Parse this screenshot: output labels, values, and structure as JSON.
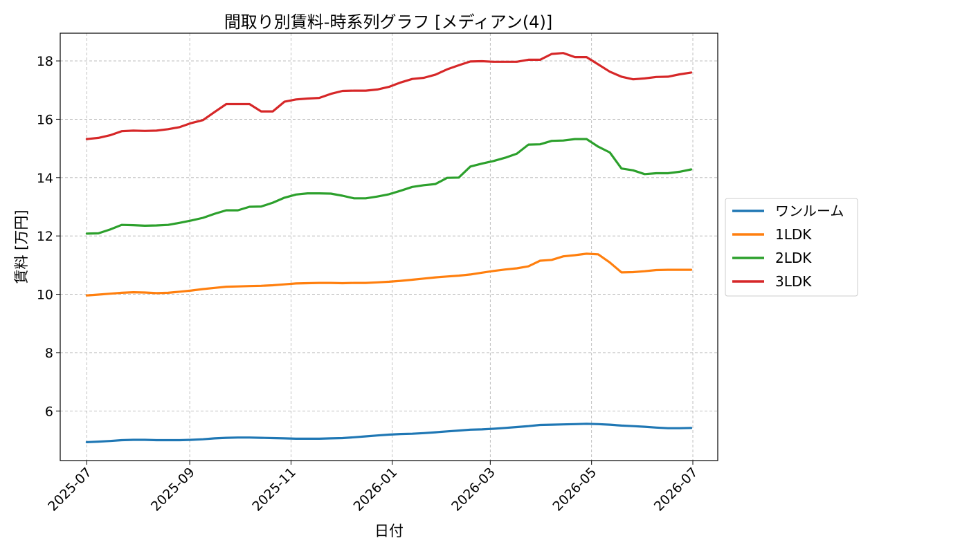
{
  "chart_data": {
    "type": "line",
    "title": "間取り別賃料-時系列グラフ [メディアン(4)]",
    "xlabel": "日付",
    "ylabel": "賃料 [万円]",
    "x_ticks": [
      "2025-07",
      "2025-09",
      "2025-11",
      "2026-01",
      "2026-03",
      "2026-05",
      "2026-07"
    ],
    "y_ticks": [
      6,
      8,
      10,
      12,
      14,
      16,
      18
    ],
    "xlim": [
      "2025-06-15",
      "2026-07-16"
    ],
    "ylim": [
      4.3,
      18.95
    ],
    "grid": true,
    "legend_position": "right",
    "x": [
      "2025-07-01",
      "2025-07-08",
      "2025-07-15",
      "2025-07-22",
      "2025-07-29",
      "2025-08-05",
      "2025-08-12",
      "2025-08-19",
      "2025-08-26",
      "2025-09-02",
      "2025-09-09",
      "2025-09-16",
      "2025-09-23",
      "2025-09-30",
      "2025-10-07",
      "2025-10-14",
      "2025-10-21",
      "2025-10-28",
      "2025-11-04",
      "2025-11-11",
      "2025-11-18",
      "2025-11-25",
      "2025-12-02",
      "2025-12-09",
      "2025-12-16",
      "2025-12-23",
      "2025-12-30",
      "2026-01-06",
      "2026-01-13",
      "2026-01-20",
      "2026-01-27",
      "2026-02-03",
      "2026-02-10",
      "2026-02-17",
      "2026-02-24",
      "2026-03-03",
      "2026-03-10",
      "2026-03-17",
      "2026-03-24",
      "2026-03-31",
      "2026-04-07",
      "2026-04-14",
      "2026-04-21",
      "2026-04-28",
      "2026-05-05",
      "2026-05-12",
      "2026-05-19",
      "2026-05-26",
      "2026-06-02",
      "2026-06-09",
      "2026-06-16",
      "2026-06-23",
      "2026-06-30"
    ],
    "series": [
      {
        "name": "ワンルーム",
        "color": "#1f77b4",
        "values": [
          4.93,
          4.95,
          4.97,
          5.0,
          5.01,
          5.01,
          5.0,
          5.0,
          5.0,
          5.01,
          5.03,
          5.06,
          5.08,
          5.09,
          5.09,
          5.08,
          5.07,
          5.06,
          5.05,
          5.05,
          5.05,
          5.06,
          5.07,
          5.1,
          5.13,
          5.16,
          5.19,
          5.21,
          5.22,
          5.24,
          5.27,
          5.3,
          5.33,
          5.36,
          5.37,
          5.39,
          5.42,
          5.45,
          5.48,
          5.52,
          5.53,
          5.54,
          5.55,
          5.56,
          5.55,
          5.53,
          5.5,
          5.48,
          5.46,
          5.43,
          5.41,
          5.41,
          5.42
        ]
      },
      {
        "name": "1LDK",
        "color": "#ff7f0e",
        "values": [
          9.96,
          9.99,
          10.02,
          10.05,
          10.07,
          10.06,
          10.04,
          10.05,
          10.09,
          10.13,
          10.18,
          10.22,
          10.26,
          10.27,
          10.28,
          10.29,
          10.31,
          10.34,
          10.37,
          10.38,
          10.39,
          10.39,
          10.38,
          10.39,
          10.39,
          10.41,
          10.43,
          10.46,
          10.5,
          10.54,
          10.58,
          10.61,
          10.64,
          10.68,
          10.74,
          10.8,
          10.85,
          10.89,
          10.96,
          11.15,
          11.18,
          11.3,
          11.34,
          11.39,
          11.37,
          11.09,
          10.75,
          10.76,
          10.79,
          10.83,
          10.84,
          10.84,
          10.84
        ]
      },
      {
        "name": "2LDK",
        "color": "#2ca02c",
        "values": [
          12.08,
          12.09,
          12.22,
          12.38,
          12.37,
          12.35,
          12.36,
          12.38,
          12.45,
          12.53,
          12.62,
          12.76,
          12.88,
          12.88,
          13.0,
          13.01,
          13.14,
          13.31,
          13.42,
          13.46,
          13.46,
          13.45,
          13.38,
          13.29,
          13.29,
          13.35,
          13.43,
          13.55,
          13.68,
          13.74,
          13.78,
          13.99,
          14.0,
          14.38,
          14.48,
          14.57,
          14.68,
          14.82,
          15.13,
          15.14,
          15.26,
          15.27,
          15.32,
          15.32,
          15.06,
          14.86,
          14.31,
          14.25,
          14.12,
          14.15,
          14.15,
          14.2,
          14.28
        ]
      },
      {
        "name": "3LDK",
        "color": "#d62728",
        "values": [
          15.32,
          15.36,
          15.45,
          15.59,
          15.61,
          15.6,
          15.61,
          15.66,
          15.73,
          15.87,
          15.97,
          16.25,
          16.52,
          16.52,
          16.52,
          16.27,
          16.27,
          16.6,
          16.68,
          16.71,
          16.73,
          16.87,
          16.97,
          16.98,
          16.98,
          17.02,
          17.11,
          17.26,
          17.38,
          17.42,
          17.53,
          17.71,
          17.85,
          17.98,
          17.99,
          17.97,
          17.97,
          17.97,
          18.04,
          18.04,
          18.24,
          18.27,
          18.13,
          18.13,
          17.88,
          17.63,
          17.46,
          17.37,
          17.4,
          17.45,
          17.46,
          17.54,
          17.6
        ]
      }
    ]
  }
}
